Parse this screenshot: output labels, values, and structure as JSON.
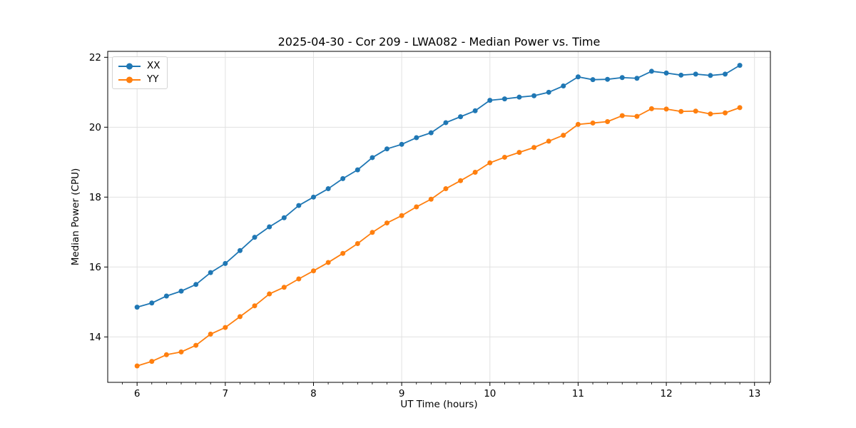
{
  "chart_data": {
    "type": "line",
    "title": "2025-04-30 - Cor 209 - LWA082 - Median Power vs. Time",
    "xlabel": "UT Time (hours)",
    "ylabel": "Median Power (CPU)",
    "x": [
      6.0,
      6.167,
      6.333,
      6.5,
      6.667,
      6.833,
      7.0,
      7.167,
      7.333,
      7.5,
      7.667,
      7.833,
      8.0,
      8.167,
      8.333,
      8.5,
      8.667,
      8.833,
      9.0,
      9.167,
      9.333,
      9.5,
      9.667,
      9.833,
      10.0,
      10.167,
      10.333,
      10.5,
      10.667,
      10.833,
      11.0,
      11.167,
      11.333,
      11.5,
      11.667,
      11.833,
      12.0,
      12.167,
      12.333,
      12.5,
      12.667,
      12.833
    ],
    "series": [
      {
        "name": "XX",
        "color": "#1f77b4",
        "values": [
          14.85,
          14.97,
          15.17,
          15.31,
          15.5,
          15.84,
          16.1,
          16.47,
          16.85,
          17.15,
          17.41,
          17.76,
          18.0,
          18.24,
          18.53,
          18.78,
          19.13,
          19.38,
          19.51,
          19.7,
          19.84,
          20.13,
          20.3,
          20.47,
          20.77,
          20.81,
          20.86,
          20.9,
          21.0,
          21.18,
          21.44,
          21.36,
          21.37,
          21.42,
          21.4,
          21.6,
          21.55,
          21.49,
          21.52,
          21.48,
          21.52,
          21.77
        ]
      },
      {
        "name": "YY",
        "color": "#ff7f0e",
        "values": [
          13.17,
          13.3,
          13.49,
          13.57,
          13.76,
          14.08,
          14.27,
          14.58,
          14.89,
          15.23,
          15.42,
          15.66,
          15.89,
          16.13,
          16.39,
          16.67,
          16.99,
          17.26,
          17.47,
          17.72,
          17.94,
          18.24,
          18.47,
          18.71,
          18.98,
          19.14,
          19.28,
          19.42,
          19.6,
          19.77,
          20.08,
          20.12,
          20.16,
          20.33,
          20.31,
          20.53,
          20.52,
          20.45,
          20.46,
          20.38,
          20.41,
          20.56
        ]
      }
    ],
    "xlim": [
      5.667,
      13.18
    ],
    "ylim": [
      12.7,
      22.17
    ],
    "xticks": [
      6,
      7,
      8,
      9,
      10,
      11,
      12,
      13
    ],
    "xtick_labels": [
      "6",
      "7",
      "8",
      "9",
      "10",
      "11",
      "12",
      "13"
    ],
    "yticks": [
      14,
      16,
      18,
      20,
      22
    ],
    "ytick_labels": [
      "14",
      "16",
      "18",
      "20",
      "22"
    ],
    "x_minor_step": 0.1666667,
    "grid": true,
    "legend_position": "upper left",
    "marker": "o"
  },
  "style": {
    "background": "#ffffff",
    "grid_color": "#e1e1e1",
    "spine_color": "#000000",
    "tick_color": "#000000",
    "text_color": "#000000"
  }
}
